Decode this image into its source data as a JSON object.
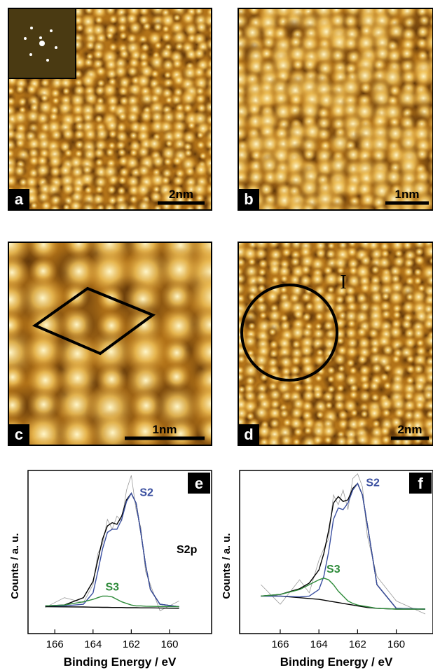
{
  "panels": [
    {
      "label": "a",
      "scale_bar": "2nm"
    },
    {
      "label": "b",
      "scale_bar": "1nm"
    },
    {
      "label": "c",
      "scale_bar": "1nm"
    },
    {
      "label": "d",
      "scale_bar": "2nm",
      "annotation": "I"
    }
  ],
  "chart_data": [
    {
      "type": "line",
      "label": "e",
      "x_label": "Binding Energy / eV",
      "y_label": "Counts / a. u.",
      "xlim": [
        167.4,
        157.8
      ],
      "ylim": [
        0,
        100
      ],
      "xticks": [
        166,
        164,
        162,
        160
      ],
      "annotations": [
        "S2p"
      ],
      "x": [
        166.5,
        165.5,
        164.5,
        164,
        163.75,
        163.5,
        163.25,
        163,
        162.75,
        162.5,
        162.25,
        162,
        161.75,
        161.5,
        161.25,
        161,
        160.5,
        159.5
      ],
      "series": [
        {
          "color": "#9a9a9a",
          "values": [
            16,
            22,
            19,
            30,
            49,
            55,
            70,
            64,
            72,
            69,
            88,
            97,
            76,
            65,
            38,
            30,
            14,
            20
          ]
        },
        {
          "color": "#000000",
          "values": [
            16.5,
            16.4,
            16.3,
            16.2,
            16.2,
            16.1,
            16.1,
            16,
            16,
            16,
            15.9,
            15.9,
            15.9,
            15.8,
            15.8,
            15.8,
            15.7,
            15.5
          ]
        },
        {
          "color": "#000000",
          "values": [
            17,
            17.5,
            22,
            32,
            45,
            58,
            66,
            68,
            67,
            72,
            82,
            86,
            80,
            62,
            42,
            27,
            18,
            16.5
          ]
        },
        {
          "name": "S2",
          "color": "#3a4fa0",
          "values": [
            17,
            17,
            18,
            25,
            38,
            52,
            62,
            64,
            64,
            70,
            81,
            86,
            80,
            62,
            42,
            27,
            18,
            16.5
          ]
        },
        {
          "name": "S3",
          "color": "#2e8b3a",
          "values": [
            17,
            17.5,
            19.5,
            21,
            22,
            23,
            23,
            22.5,
            21,
            19.5,
            18.5,
            17.5,
            17,
            17,
            16.8,
            16.7,
            16.6,
            16.5
          ]
        }
      ]
    },
    {
      "type": "line",
      "label": "f",
      "x_label": "Binding Energy / eV",
      "y_label": "Counts / a. u.",
      "xlim": [
        168.1,
        158.1
      ],
      "ylim": [
        0,
        100
      ],
      "xticks": [
        166,
        164,
        162,
        160
      ],
      "x": [
        167,
        166,
        165,
        164.5,
        164,
        163.75,
        163.5,
        163.25,
        163,
        162.75,
        162.5,
        162.25,
        162,
        161.75,
        161.5,
        161,
        160,
        158.5
      ],
      "series": [
        {
          "color": "#9a9a9a",
          "values": [
            30,
            18,
            33,
            25,
            45,
            52,
            58,
            85,
            79,
            88,
            76,
            95,
            98,
            90,
            60,
            35,
            20,
            12
          ]
        },
        {
          "color": "#000000",
          "values": [
            23,
            23,
            22,
            21.5,
            21,
            20.5,
            20,
            19.5,
            19,
            18.5,
            18,
            17.5,
            17,
            16.5,
            16,
            15.5,
            15,
            15
          ]
        },
        {
          "color": "#000000",
          "values": [
            23,
            24,
            27.5,
            31,
            39,
            49,
            63,
            80,
            84,
            81,
            82,
            89,
            92,
            85,
            67,
            30,
            15.5,
            15
          ]
        },
        {
          "name": "S2",
          "color": "#3a4fa0",
          "values": [
            23,
            23,
            22.5,
            23,
            27,
            35,
            50,
            70,
            77,
            76,
            80,
            88,
            92,
            85,
            67,
            30,
            15.5,
            15
          ]
        },
        {
          "name": "S3",
          "color": "#2e8b3a",
          "values": [
            23,
            24,
            27,
            30,
            33,
            34,
            33,
            30,
            26,
            23,
            20,
            18.5,
            17.5,
            17,
            16.5,
            15.5,
            15,
            15
          ]
        }
      ]
    }
  ]
}
